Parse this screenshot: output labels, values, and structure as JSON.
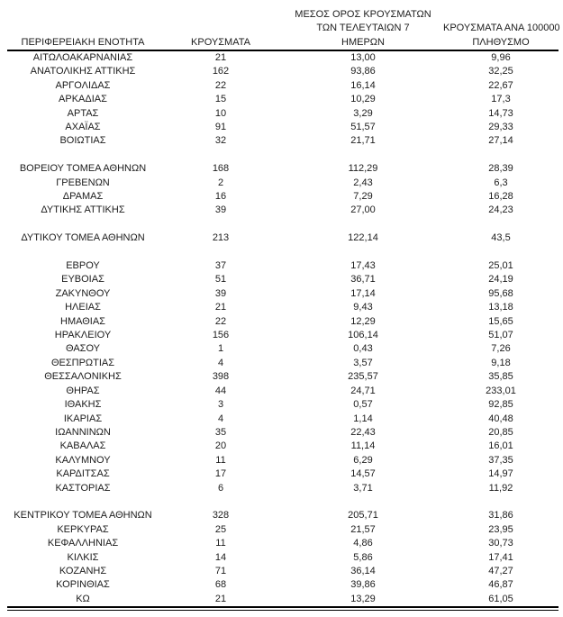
{
  "table": {
    "headers": {
      "col1": "ΠΕΡΙΦΕΡΕΙΑΚΗ ΕΝΟΤΗΤΑ",
      "col2": "ΚΡΟΥΣΜΑΤΑ",
      "col3_lines": [
        "ΜΕΣΟΣ ΟΡΟΣ ΚΡΟΥΣΜΑΤΩΝ",
        "ΤΩΝ ΤΕΛΕΥΤΑΙΩΝ 7",
        "ΗΜΕΡΩΝ"
      ],
      "col4_lines": [
        "ΚΡΟΥΣΜΑΤΑ ΑΝΑ 100000",
        "ΠΛΗΘΥΣΜΟ"
      ]
    },
    "rows": [
      {
        "name": "ΑΙΤΩΛΟΑΚΑΡΝΑΝΙΑΣ",
        "cases": "21",
        "avg7": "13,00",
        "per100k": "9,96"
      },
      {
        "name": "ΑΝΑΤΟΛΙΚΗΣ ΑΤΤΙΚΗΣ",
        "cases": "162",
        "avg7": "93,86",
        "per100k": "32,25"
      },
      {
        "name": "ΑΡΓΟΛΙΔΑΣ",
        "cases": "22",
        "avg7": "16,14",
        "per100k": "22,67"
      },
      {
        "name": "ΑΡΚΑΔΙΑΣ",
        "cases": "15",
        "avg7": "10,29",
        "per100k": "17,3"
      },
      {
        "name": "ΑΡΤΑΣ",
        "cases": "10",
        "avg7": "3,29",
        "per100k": "14,73"
      },
      {
        "name": "ΑΧΑΪΑΣ",
        "cases": "91",
        "avg7": "51,57",
        "per100k": "29,33"
      },
      {
        "name": "ΒΟΙΩΤΙΑΣ",
        "cases": "32",
        "avg7": "21,71",
        "per100k": "27,14"
      },
      {
        "spacer": true
      },
      {
        "name": "ΒΟΡΕΙΟΥ ΤΟΜΕΑ ΑΘΗΝΩΝ",
        "cases": "168",
        "avg7": "112,29",
        "per100k": "28,39"
      },
      {
        "name": "ΓΡΕΒΕΝΩΝ",
        "cases": "2",
        "avg7": "2,43",
        "per100k": "6,3"
      },
      {
        "name": "ΔΡΑΜΑΣ",
        "cases": "16",
        "avg7": "7,29",
        "per100k": "16,28"
      },
      {
        "name": "ΔΥΤΙΚΗΣ ΑΤΤΙΚΗΣ",
        "cases": "39",
        "avg7": "27,00",
        "per100k": "24,23"
      },
      {
        "spacer": true
      },
      {
        "name": "ΔΥΤΙΚΟΥ ΤΟΜΕΑ ΑΘΗΝΩΝ",
        "cases": "213",
        "avg7": "122,14",
        "per100k": "43,5"
      },
      {
        "spacer": true
      },
      {
        "name": "ΕΒΡΟΥ",
        "cases": "37",
        "avg7": "17,43",
        "per100k": "25,01"
      },
      {
        "name": "ΕΥΒΟΙΑΣ",
        "cases": "51",
        "avg7": "36,71",
        "per100k": "24,19"
      },
      {
        "name": "ΖΑΚΥΝΘΟΥ",
        "cases": "39",
        "avg7": "17,14",
        "per100k": "95,68"
      },
      {
        "name": "ΗΛΕΙΑΣ",
        "cases": "21",
        "avg7": "9,43",
        "per100k": "13,18"
      },
      {
        "name": "ΗΜΑΘΙΑΣ",
        "cases": "22",
        "avg7": "12,29",
        "per100k": "15,65"
      },
      {
        "name": "ΗΡΑΚΛΕΙΟΥ",
        "cases": "156",
        "avg7": "106,14",
        "per100k": "51,07"
      },
      {
        "name": "ΘΑΣΟΥ",
        "cases": "1",
        "avg7": "0,43",
        "per100k": "7,26"
      },
      {
        "name": "ΘΕΣΠΡΩΤΙΑΣ",
        "cases": "4",
        "avg7": "3,57",
        "per100k": "9,18"
      },
      {
        "name": "ΘΕΣΣΑΛΟΝΙΚΗΣ",
        "cases": "398",
        "avg7": "235,57",
        "per100k": "35,85"
      },
      {
        "name": "ΘΗΡΑΣ",
        "cases": "44",
        "avg7": "24,71",
        "per100k": "233,01"
      },
      {
        "name": "ΙΘΑΚΗΣ",
        "cases": "3",
        "avg7": "0,57",
        "per100k": "92,85"
      },
      {
        "name": "ΙΚΑΡΙΑΣ",
        "cases": "4",
        "avg7": "1,14",
        "per100k": "40,48"
      },
      {
        "name": "ΙΩΑΝΝΙΝΩΝ",
        "cases": "35",
        "avg7": "22,43",
        "per100k": "20,85"
      },
      {
        "name": "ΚΑΒΑΛΑΣ",
        "cases": "20",
        "avg7": "11,14",
        "per100k": "16,01"
      },
      {
        "name": "ΚΑΛΥΜΝΟΥ",
        "cases": "11",
        "avg7": "6,29",
        "per100k": "37,35"
      },
      {
        "name": "ΚΑΡΔΙΤΣΑΣ",
        "cases": "17",
        "avg7": "14,57",
        "per100k": "14,97"
      },
      {
        "name": "ΚΑΣΤΟΡΙΑΣ",
        "cases": "6",
        "avg7": "3,71",
        "per100k": "11,92"
      },
      {
        "spacer": true
      },
      {
        "name": "ΚΕΝΤΡΙΚΟΥ ΤΟΜΕΑ ΑΘΗΝΩΝ",
        "cases": "328",
        "avg7": "205,71",
        "per100k": "31,86"
      },
      {
        "name": "ΚΕΡΚΥΡΑΣ",
        "cases": "25",
        "avg7": "21,57",
        "per100k": "23,95"
      },
      {
        "name": "ΚΕΦΑΛΛΗΝΙΑΣ",
        "cases": "11",
        "avg7": "4,86",
        "per100k": "30,73"
      },
      {
        "name": "ΚΙΛΚΙΣ",
        "cases": "14",
        "avg7": "5,86",
        "per100k": "17,41"
      },
      {
        "name": "ΚΟΖΑΝΗΣ",
        "cases": "71",
        "avg7": "36,14",
        "per100k": "47,27"
      },
      {
        "name": "ΚΟΡΙΝΘΙΑΣ",
        "cases": "68",
        "avg7": "39,86",
        "per100k": "46,87"
      },
      {
        "name": "ΚΩ",
        "cases": "21",
        "avg7": "13,29",
        "per100k": "61,05"
      }
    ]
  }
}
